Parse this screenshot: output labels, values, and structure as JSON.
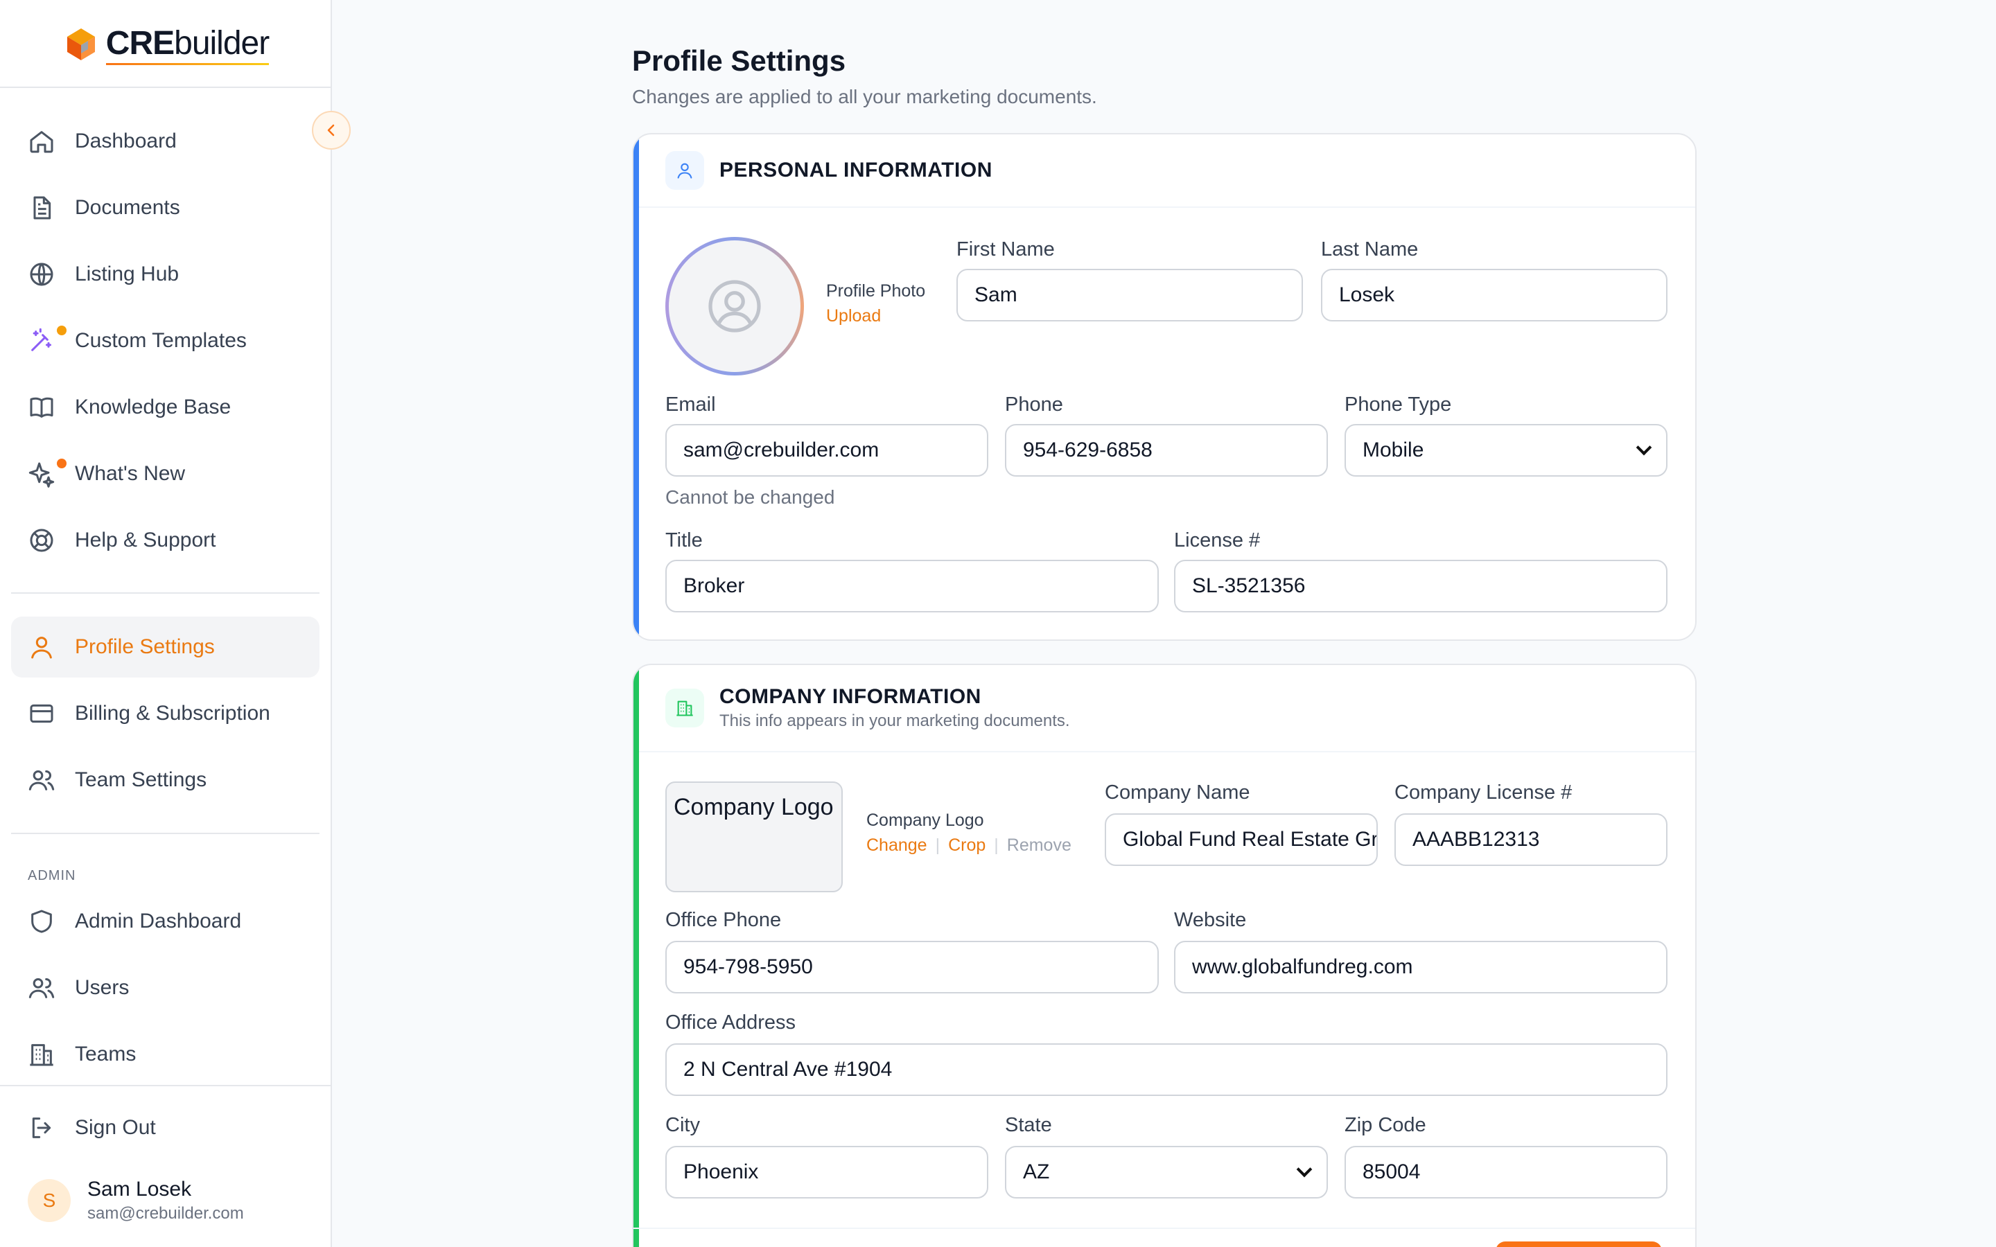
{
  "brand": {
    "logo_bold": "CRE",
    "logo_light": "builder",
    "accent": "#f97316"
  },
  "sidebar": {
    "collapse_icon": "chevron-left-icon",
    "items": [
      {
        "label": "Dashboard",
        "icon": "home-icon"
      },
      {
        "label": "Documents",
        "icon": "document-icon"
      },
      {
        "label": "Listing Hub",
        "icon": "globe-icon"
      },
      {
        "label": "Custom Templates",
        "icon": "magic-wand-icon"
      },
      {
        "label": "Knowledge Base",
        "icon": "book-icon"
      },
      {
        "label": "What's New",
        "icon": "sparkle-icon"
      },
      {
        "label": "Help & Support",
        "icon": "lifebuoy-icon"
      }
    ],
    "account_items": [
      {
        "label": "Profile Settings",
        "icon": "user-icon"
      },
      {
        "label": "Billing & Subscription",
        "icon": "credit-card-icon"
      },
      {
        "label": "Team Settings",
        "icon": "users-icon"
      }
    ],
    "admin_label": "ADMIN",
    "admin_items": [
      {
        "label": "Admin Dashboard",
        "icon": "shield-icon"
      },
      {
        "label": "Users",
        "icon": "users-icon"
      },
      {
        "label": "Teams",
        "icon": "building-icon"
      }
    ],
    "sign_out": "Sign Out",
    "user": {
      "initial": "S",
      "name": "Sam Losek",
      "email": "sam@crebuilder.com"
    }
  },
  "page": {
    "title": "Profile Settings",
    "subtitle": "Changes are applied to all your marketing documents."
  },
  "personal": {
    "title": "PERSONAL INFORMATION",
    "photo_label": "Profile Photo",
    "upload": "Upload",
    "first_name_label": "First Name",
    "first_name": "Sam",
    "last_name_label": "Last Name",
    "last_name": "Losek",
    "email_label": "Email",
    "email": "sam@crebuilder.com",
    "email_hint": "Cannot be changed",
    "phone_label": "Phone",
    "phone": "954-629-6858",
    "phone_type_label": "Phone Type",
    "phone_type": "Mobile",
    "title_label": "Title",
    "title_value": "Broker",
    "license_label": "License #",
    "license": "SL-3521356"
  },
  "company": {
    "title": "COMPANY INFORMATION",
    "subtitle": "This info appears in your marketing documents.",
    "logo_alt": "Company Logo",
    "logo_label": "Company Logo",
    "change": "Change",
    "crop": "Crop",
    "remove": "Remove",
    "name_label": "Company Name",
    "name": "Global Fund Real Estate Group",
    "license_label": "Company License #",
    "license": "AAABB12313",
    "office_phone_label": "Office Phone",
    "office_phone": "954-798-5950",
    "website_label": "Website",
    "website": "www.globalfundreg.com",
    "address_label": "Office Address",
    "address": "2 N Central Ave #1904",
    "city_label": "City",
    "city": "Phoenix",
    "state_label": "State",
    "state": "AZ",
    "zip_label": "Zip Code",
    "zip": "85004"
  }
}
